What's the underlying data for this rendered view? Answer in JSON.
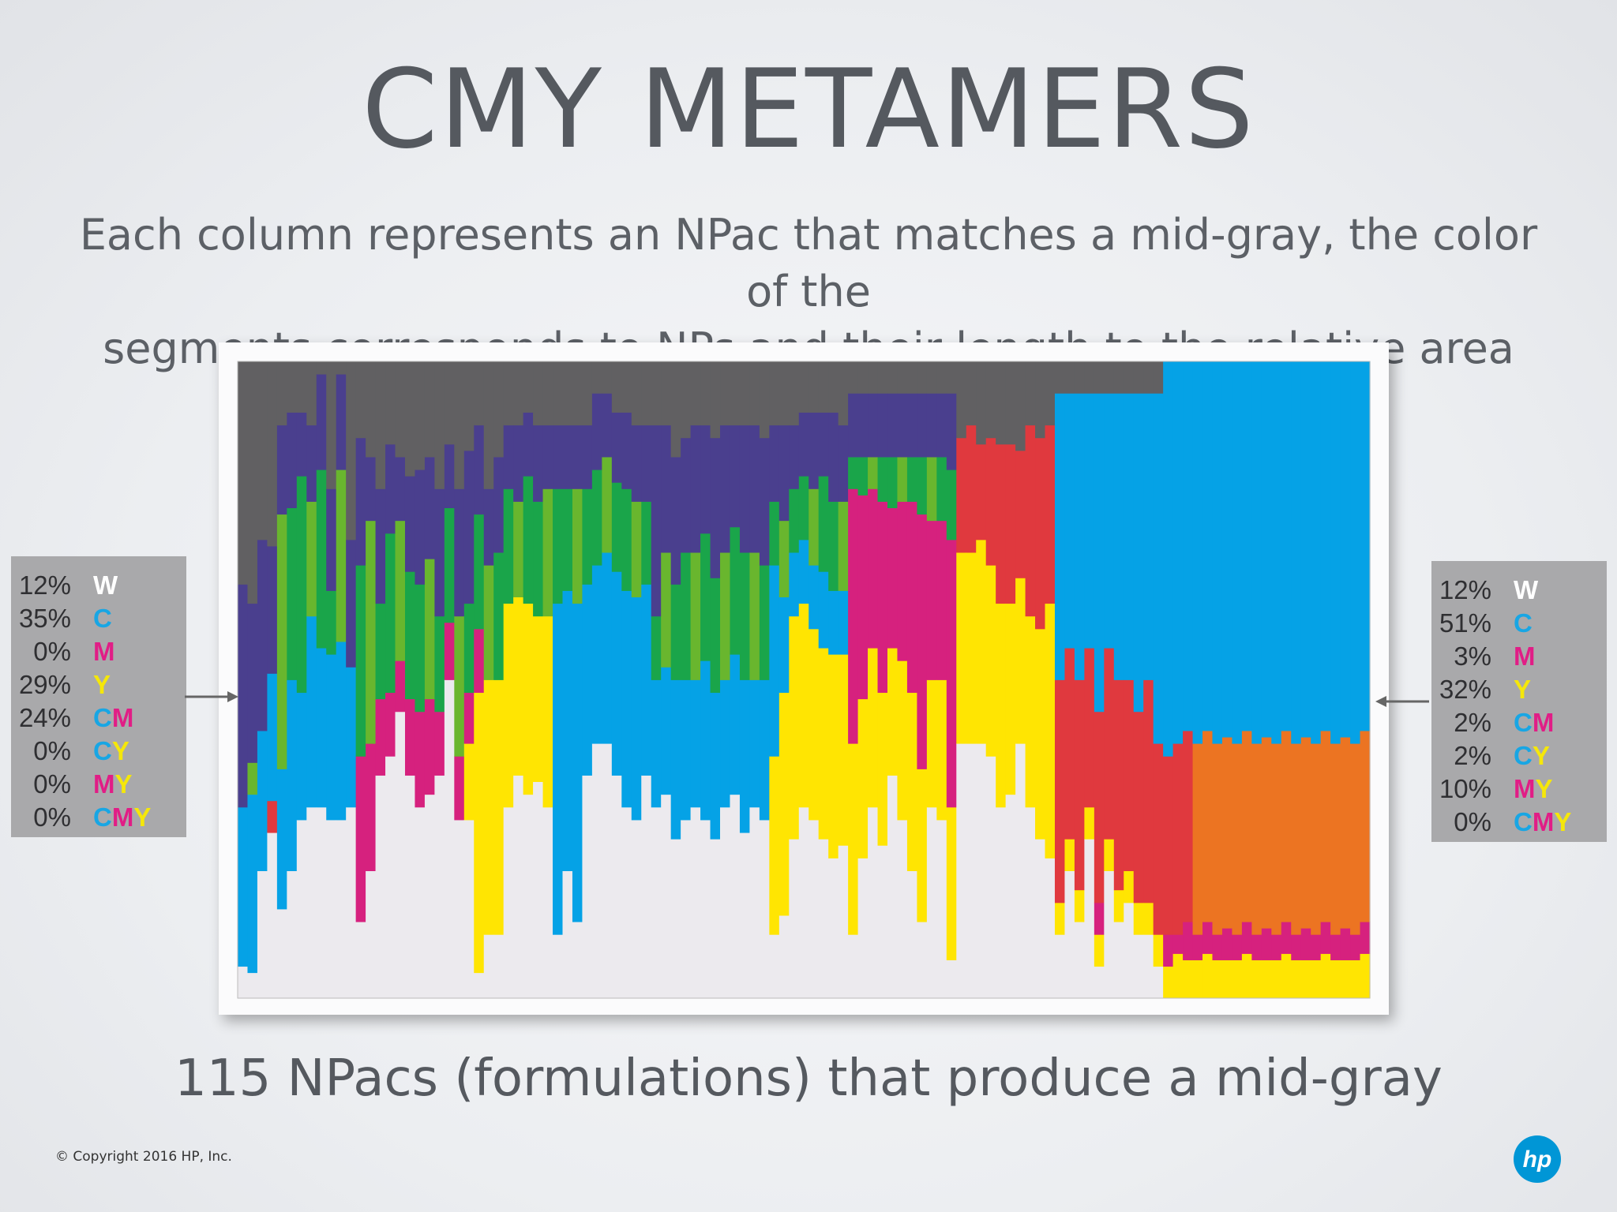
{
  "title": "CMY METAMERS",
  "subtitle_lines": [
    "Each column represents an NPac that matches a mid-gray, the color of the",
    "segments corresponds to NPs and their length to the relative area coverages"
  ],
  "caption": "115 NPacs (formulations) that produce a mid-gray",
  "copyright": "© Copyright 2016 HP, Inc.",
  "logo_text": "hp",
  "legend_left": [
    {
      "pct": "12%",
      "parts": [
        [
          "W",
          "W"
        ]
      ]
    },
    {
      "pct": "35%",
      "parts": [
        [
          "C",
          "C"
        ]
      ]
    },
    {
      "pct": "0%",
      "parts": [
        [
          "M",
          "M"
        ]
      ]
    },
    {
      "pct": "29%",
      "parts": [
        [
          "Y",
          "Y"
        ]
      ]
    },
    {
      "pct": "24%",
      "parts": [
        [
          "C",
          "C"
        ],
        [
          "M",
          "M"
        ]
      ]
    },
    {
      "pct": "0%",
      "parts": [
        [
          "C",
          "C"
        ],
        [
          "Y",
          "Y"
        ]
      ]
    },
    {
      "pct": "0%",
      "parts": [
        [
          "M",
          "M"
        ],
        [
          "Y",
          "Y"
        ]
      ]
    },
    {
      "pct": "0%",
      "parts": [
        [
          "C",
          "C"
        ],
        [
          "M",
          "M"
        ],
        [
          "Y",
          "Y"
        ]
      ]
    }
  ],
  "legend_right": [
    {
      "pct": "12%",
      "parts": [
        [
          "W",
          "W"
        ]
      ]
    },
    {
      "pct": "51%",
      "parts": [
        [
          "C",
          "C"
        ]
      ]
    },
    {
      "pct": "3%",
      "parts": [
        [
          "M",
          "M"
        ]
      ]
    },
    {
      "pct": "32%",
      "parts": [
        [
          "Y",
          "Y"
        ]
      ]
    },
    {
      "pct": "2%",
      "parts": [
        [
          "C",
          "C"
        ],
        [
          "M",
          "M"
        ]
      ]
    },
    {
      "pct": "2%",
      "parts": [
        [
          "C",
          "C"
        ],
        [
          "Y",
          "Y"
        ]
      ]
    },
    {
      "pct": "10%",
      "parts": [
        [
          "M",
          "M"
        ],
        [
          "Y",
          "Y"
        ]
      ]
    },
    {
      "pct": "0%",
      "parts": [
        [
          "C",
          "C"
        ],
        [
          "M",
          "M"
        ],
        [
          "Y",
          "Y"
        ]
      ]
    }
  ],
  "colors": {
    "W": "#eceaee",
    "C": "#05a2e6",
    "M": "#d6217e",
    "Y": "#ffe502",
    "CM": "#4a3f8e",
    "CY": "#1aa54a",
    "MY": "#e0393e",
    "CMY": "#616062",
    "CY_light": "#69b62e",
    "MY_orange": "#ec7422",
    "legend_bg": "#a9a9ab",
    "hp_blue": "#0096d6"
  },
  "chart_data": {
    "type": "stacked-bar",
    "n_columns": 115,
    "stack_order_bottom_to_top": [
      "W",
      "Y",
      "M",
      "MY",
      "C",
      "CY",
      "CM",
      "CMY"
    ],
    "series": [
      {
        "name": "W"
      },
      {
        "name": "C"
      },
      {
        "name": "M"
      },
      {
        "name": "Y"
      },
      {
        "name": "CM"
      },
      {
        "name": "CY"
      },
      {
        "name": "MY"
      },
      {
        "name": "CMY"
      }
    ],
    "columns": [
      [
        0.05,
        0.25,
        0,
        0,
        0.35,
        0,
        0,
        0.35
      ],
      [
        0.04,
        0.28,
        0,
        0,
        0.25,
        0.05,
        0,
        0.38
      ],
      [
        0.2,
        0.22,
        0,
        0,
        0.3,
        0,
        0,
        0.28
      ],
      [
        0.26,
        0.2,
        0,
        0,
        0.2,
        0,
        0.05,
        0.29
      ],
      [
        0.14,
        0.22,
        0,
        0,
        0.14,
        0.4,
        0,
        0.1
      ],
      [
        0.2,
        0.3,
        0,
        0,
        0.15,
        0.27,
        0,
        0.08
      ],
      [
        0.28,
        0.2,
        0,
        0,
        0.1,
        0.34,
        0,
        0.08
      ],
      [
        0.3,
        0.3,
        0,
        0,
        0.12,
        0.18,
        0,
        0.1
      ],
      [
        0.3,
        0.25,
        0,
        0,
        0.15,
        0.28,
        0,
        0.02
      ],
      [
        0.28,
        0.26,
        0,
        0,
        0.16,
        0.1,
        0,
        0.2
      ],
      [
        0.28,
        0.28,
        0,
        0,
        0.15,
        0.27,
        0,
        0.02
      ],
      [
        0.3,
        0.22,
        0,
        0,
        0.2,
        0,
        0,
        0.28
      ],
      [
        0.12,
        0,
        0.26,
        0,
        0.2,
        0.3,
        0,
        0.12
      ],
      [
        0.2,
        0,
        0.2,
        0,
        0.1,
        0.35,
        0,
        0.15
      ],
      [
        0.35,
        0,
        0.12,
        0,
        0.18,
        0.15,
        0,
        0.2
      ],
      [
        0.38,
        0,
        0.1,
        0,
        0.14,
        0.25,
        0,
        0.13
      ],
      [
        0.45,
        0,
        0.08,
        0,
        0.1,
        0.22,
        0,
        0.15
      ],
      [
        0.35,
        0,
        0.12,
        0,
        0.15,
        0.2,
        0,
        0.18
      ],
      [
        0.3,
        0,
        0.15,
        0,
        0.18,
        0.2,
        0,
        0.17
      ],
      [
        0.32,
        0,
        0.15,
        0,
        0.16,
        0.22,
        0,
        0.15
      ],
      [
        0.35,
        0,
        0.1,
        0,
        0.2,
        0.15,
        0,
        0.2
      ],
      [
        0.5,
        0,
        0.09,
        0,
        0.1,
        0.18,
        0,
        0.13
      ],
      [
        0.28,
        0,
        0.1,
        0,
        0.2,
        0.22,
        0,
        0.2
      ],
      [
        0.28,
        0,
        0.08,
        0.12,
        0.24,
        0.14,
        0,
        0.14
      ],
      [
        0.04,
        0,
        0.1,
        0.44,
        0.14,
        0.18,
        0,
        0.1
      ],
      [
        0.1,
        0,
        0,
        0.4,
        0.12,
        0.18,
        0,
        0.2
      ],
      [
        0.1,
        0,
        0,
        0.4,
        0.15,
        0.2,
        0,
        0.15
      ],
      [
        0.3,
        0,
        0,
        0.32,
        0.1,
        0.18,
        0,
        0.1
      ],
      [
        0.35,
        0,
        0,
        0.28,
        0.12,
        0.15,
        0,
        0.1
      ],
      [
        0.32,
        0,
        0,
        0.3,
        0.1,
        0.2,
        0,
        0.08
      ],
      [
        0.34,
        0,
        0,
        0.26,
        0.12,
        0.18,
        0,
        0.1
      ],
      [
        0.3,
        0,
        0,
        0.3,
        0.1,
        0.2,
        0,
        0.1
      ],
      [
        0.1,
        0.52,
        0,
        0,
        0.1,
        0.18,
        0,
        0.1
      ],
      [
        0.2,
        0.44,
        0,
        0,
        0.1,
        0.16,
        0,
        0.1
      ],
      [
        0.12,
        0.5,
        0,
        0,
        0.1,
        0.18,
        0,
        0.1
      ],
      [
        0.35,
        0.3,
        0,
        0,
        0.1,
        0.15,
        0,
        0.1
      ],
      [
        0.4,
        0.28,
        0,
        0,
        0.12,
        0.15,
        0,
        0.05
      ],
      [
        0.4,
        0.3,
        0,
        0,
        0.1,
        0.15,
        0,
        0.05
      ],
      [
        0.35,
        0.32,
        0,
        0,
        0.11,
        0.14,
        0,
        0.08
      ],
      [
        0.3,
        0.34,
        0,
        0,
        0.12,
        0.16,
        0,
        0.08
      ],
      [
        0.28,
        0.35,
        0,
        0,
        0.12,
        0.15,
        0,
        0.1
      ],
      [
        0.35,
        0.3,
        0,
        0,
        0.12,
        0.13,
        0,
        0.1
      ],
      [
        0.3,
        0.2,
        0,
        0,
        0.3,
        0.1,
        0,
        0.1
      ],
      [
        0.32,
        0.2,
        0,
        0,
        0.2,
        0.18,
        0,
        0.1
      ],
      [
        0.25,
        0.25,
        0,
        0,
        0.2,
        0.15,
        0,
        0.15
      ],
      [
        0.28,
        0.22,
        0,
        0,
        0.18,
        0.2,
        0,
        0.12
      ],
      [
        0.3,
        0.2,
        0,
        0,
        0.2,
        0.2,
        0,
        0.1
      ],
      [
        0.28,
        0.25,
        0,
        0,
        0.17,
        0.2,
        0,
        0.1
      ],
      [
        0.25,
        0.23,
        0,
        0,
        0.22,
        0.18,
        0,
        0.12
      ],
      [
        0.3,
        0.2,
        0,
        0,
        0.2,
        0.2,
        0,
        0.1
      ],
      [
        0.32,
        0.22,
        0,
        0,
        0.16,
        0.2,
        0,
        0.1
      ],
      [
        0.26,
        0.24,
        0,
        0,
        0.2,
        0.2,
        0,
        0.1
      ],
      [
        0.3,
        0.2,
        0,
        0,
        0.2,
        0.2,
        0,
        0.1
      ],
      [
        0.28,
        0.22,
        0,
        0,
        0.2,
        0.18,
        0,
        0.12
      ],
      [
        0.1,
        0.3,
        0,
        0.28,
        0.12,
        0.1,
        0,
        0.1
      ],
      [
        0.13,
        0.15,
        0,
        0.35,
        0.15,
        0.12,
        0,
        0.1
      ],
      [
        0.25,
        0.1,
        0,
        0.35,
        0.1,
        0.1,
        0,
        0.1
      ],
      [
        0.3,
        0.1,
        0,
        0.32,
        0.1,
        0.1,
        0,
        0.08
      ],
      [
        0.28,
        0.1,
        0,
        0.3,
        0.12,
        0.12,
        0,
        0.08
      ],
      [
        0.25,
        0.12,
        0,
        0.3,
        0.1,
        0.15,
        0,
        0.08
      ],
      [
        0.22,
        0.1,
        0,
        0.32,
        0.14,
        0.14,
        0,
        0.08
      ],
      [
        0.24,
        0.1,
        0,
        0.3,
        0.12,
        0.14,
        0,
        0.1
      ],
      [
        0.1,
        0,
        0.4,
        0.3,
        0.1,
        0.05,
        0,
        0.05
      ],
      [
        0.22,
        0,
        0.32,
        0.25,
        0.1,
        0.06,
        0,
        0.05
      ],
      [
        0.3,
        0,
        0.25,
        0.25,
        0.1,
        0.05,
        0,
        0.05
      ],
      [
        0.24,
        0,
        0.3,
        0.24,
        0.1,
        0.07,
        0,
        0.05
      ],
      [
        0.35,
        0,
        0.22,
        0.2,
        0.1,
        0.08,
        0,
        0.05
      ],
      [
        0.28,
        0,
        0.25,
        0.25,
        0.1,
        0.07,
        0,
        0.05
      ],
      [
        0.2,
        0,
        0.3,
        0.28,
        0.1,
        0.07,
        0,
        0.05
      ],
      [
        0.12,
        0,
        0.4,
        0.24,
        0.1,
        0.09,
        0,
        0.05
      ],
      [
        0.3,
        0,
        0.25,
        0.2,
        0.1,
        0.1,
        0,
        0.05
      ],
      [
        0.28,
        0,
        0.25,
        0.22,
        0.1,
        0.1,
        0,
        0.05
      ],
      [
        0.06,
        0,
        0.42,
        0.24,
        0.12,
        0.11,
        0,
        0.05
      ],
      [
        0.4,
        0,
        0,
        0.3,
        0,
        0,
        0.18,
        0.12
      ],
      [
        0.4,
        0,
        0,
        0.3,
        0,
        0,
        0.2,
        0.1
      ],
      [
        0.4,
        0,
        0,
        0.32,
        0,
        0,
        0.15,
        0.13
      ],
      [
        0.38,
        0,
        0,
        0.3,
        0,
        0,
        0.2,
        0.12
      ],
      [
        0.3,
        0,
        0,
        0.32,
        0,
        0,
        0.25,
        0.13
      ],
      [
        0.32,
        0,
        0,
        0.3,
        0,
        0,
        0.25,
        0.13
      ],
      [
        0.4,
        0,
        0,
        0.26,
        0,
        0,
        0.2,
        0.14
      ],
      [
        0.3,
        0,
        0,
        0.3,
        0,
        0,
        0.3,
        0.1
      ],
      [
        0.25,
        0,
        0,
        0.33,
        0,
        0,
        0.3,
        0.12
      ],
      [
        0.22,
        0,
        0,
        0.4,
        0,
        0,
        0.28,
        0.1
      ],
      [
        0.1,
        0.45,
        0,
        0.05,
        0,
        0,
        0.35,
        0.05
      ],
      [
        0.2,
        0.4,
        0,
        0.05,
        0,
        0,
        0.3,
        0.05
      ],
      [
        0.12,
        0.45,
        0,
        0.05,
        0,
        0,
        0.33,
        0.05
      ],
      [
        0.25,
        0.4,
        0,
        0.05,
        0,
        0,
        0.25,
        0.05
      ],
      [
        0.05,
        0.5,
        0.05,
        0.05,
        0,
        0,
        0.3,
        0.05
      ],
      [
        0.2,
        0.4,
        0,
        0.05,
        0,
        0,
        0.3,
        0.05
      ],
      [
        0.12,
        0.45,
        0,
        0.05,
        0,
        0,
        0.33,
        0.05
      ],
      [
        0.15,
        0.45,
        0,
        0.05,
        0,
        0,
        0.3,
        0.05
      ],
      [
        0.1,
        0.5,
        0,
        0.05,
        0,
        0,
        0.3,
        0.05
      ],
      [
        0.1,
        0.45,
        0,
        0.05,
        0,
        0,
        0.35,
        0.05
      ],
      [
        0.05,
        0.55,
        0,
        0.05,
        0,
        0,
        0.3,
        0.05
      ],
      [
        0,
        0.62,
        0.05,
        0.05,
        0,
        0,
        0.28,
        0
      ],
      [
        0,
        0.6,
        0.03,
        0.07,
        0,
        0,
        0.3,
        0
      ],
      [
        0,
        0.58,
        0.06,
        0.06,
        0,
        0,
        0.3,
        0
      ],
      [
        0,
        0.6,
        0.04,
        0.06,
        0,
        0,
        0.3,
        0
      ],
      [
        0,
        0.58,
        0.05,
        0.07,
        0,
        0,
        0.3,
        0
      ],
      [
        0,
        0.6,
        0.04,
        0.06,
        0,
        0,
        0.3,
        0
      ],
      [
        0,
        0.59,
        0.05,
        0.06,
        0,
        0,
        0.3,
        0
      ],
      [
        0,
        0.6,
        0.04,
        0.06,
        0,
        0,
        0.3,
        0
      ],
      [
        0,
        0.58,
        0.05,
        0.07,
        0,
        0,
        0.3,
        0
      ],
      [
        0,
        0.6,
        0.04,
        0.06,
        0,
        0,
        0.3,
        0
      ],
      [
        0,
        0.59,
        0.05,
        0.06,
        0,
        0,
        0.3,
        0
      ],
      [
        0,
        0.6,
        0.04,
        0.06,
        0,
        0,
        0.3,
        0
      ],
      [
        0,
        0.58,
        0.05,
        0.07,
        0,
        0,
        0.3,
        0
      ],
      [
        0,
        0.6,
        0.04,
        0.06,
        0,
        0,
        0.3,
        0
      ],
      [
        0,
        0.59,
        0.05,
        0.06,
        0,
        0,
        0.3,
        0
      ],
      [
        0,
        0.6,
        0.04,
        0.06,
        0,
        0,
        0.3,
        0
      ],
      [
        0,
        0.58,
        0.05,
        0.07,
        0,
        0,
        0.3,
        0
      ],
      [
        0,
        0.6,
        0.04,
        0.06,
        0,
        0,
        0.3,
        0
      ],
      [
        0,
        0.59,
        0.05,
        0.06,
        0,
        0,
        0.3,
        0
      ],
      [
        0,
        0.6,
        0.04,
        0.06,
        0,
        0,
        0.3,
        0
      ],
      [
        0,
        0.58,
        0.05,
        0.07,
        0,
        0,
        0.3,
        0
      ]
    ]
  }
}
